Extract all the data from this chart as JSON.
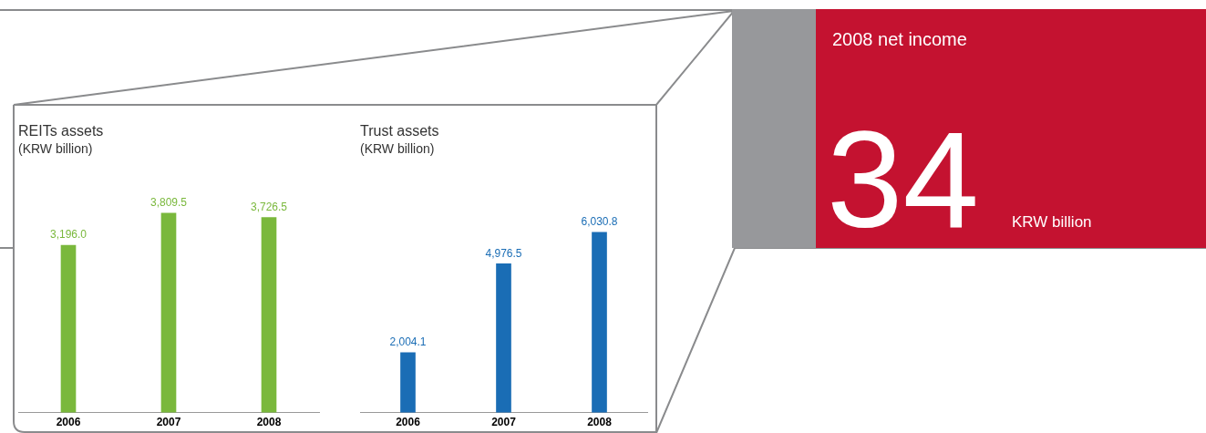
{
  "chart_data": [
    {
      "type": "bar",
      "title": "REITs assets",
      "subtitle": "(KRW billion)",
      "categories": [
        "2006",
        "2007",
        "2008"
      ],
      "values": [
        3196.0,
        3809.5,
        3726.5
      ],
      "color": "#7ab83c",
      "value_labels": [
        "3,196.0",
        "3,809.5",
        "3,726.5"
      ],
      "tick_labels": "x",
      "grid": false,
      "legend": false
    },
    {
      "type": "bar",
      "title": "Trust assets",
      "subtitle": "(KRW billion)",
      "categories": [
        "2006",
        "2007",
        "2008"
      ],
      "values": [
        2004.1,
        4976.5,
        6030.8
      ],
      "color": "#1a6db5",
      "value_labels": [
        "2,004.1",
        "4,976.5",
        "6,030.8"
      ],
      "tick_labels": "x",
      "grid": false,
      "legend": false
    },
    {
      "type": "other",
      "title": "2008 net income",
      "annotations": [
        "34",
        "KRW billion"
      ]
    }
  ]
}
